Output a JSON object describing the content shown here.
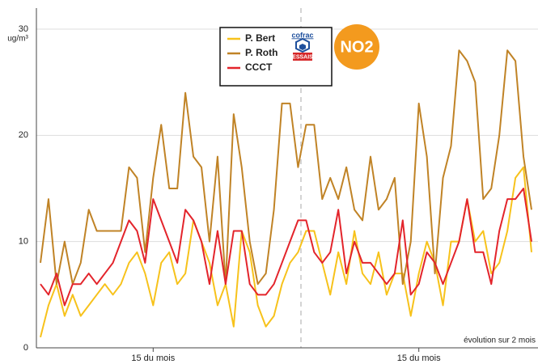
{
  "chart_data": {
    "type": "line",
    "ylabel": "ug/m³",
    "annotation": "évolution sur 2 mois",
    "badge": "NO2",
    "logo": {
      "top": "cofrac",
      "bottom": "ESSAIS"
    },
    "categories": [
      null,
      null,
      null,
      null,
      null,
      null,
      null,
      null,
      null,
      null,
      null,
      null,
      null,
      null,
      "15 du mois",
      null,
      null,
      null,
      null,
      null,
      null,
      null,
      null,
      null,
      null,
      null,
      null,
      null,
      null,
      null,
      null,
      null,
      null,
      null,
      null,
      null,
      null,
      null,
      null,
      null,
      null,
      null,
      null,
      null,
      null,
      null,
      null,
      "15 du mois",
      null,
      null,
      null,
      null,
      null,
      null,
      null,
      null,
      null,
      null,
      null,
      null,
      null,
      null
    ],
    "series": [
      {
        "name": "P. Bert",
        "color": "#f7c21b",
        "values": [
          1,
          4,
          6,
          3,
          5,
          3,
          4,
          5,
          6,
          5,
          6,
          8,
          9,
          7,
          4,
          8,
          9,
          6,
          7,
          12,
          10,
          8,
          4,
          6,
          2,
          11,
          9,
          4,
          2,
          3,
          6,
          8,
          9,
          11,
          11,
          8,
          5,
          9,
          6,
          11,
          7,
          6,
          9,
          5,
          7,
          7,
          3,
          7,
          10,
          8,
          4,
          10,
          10,
          14,
          10,
          11,
          7,
          8,
          11,
          16,
          17,
          9
        ]
      },
      {
        "name": "P. Roth",
        "color": "#c08326",
        "values": [
          8,
          14,
          6,
          10,
          6,
          8,
          13,
          11,
          11,
          11,
          11,
          17,
          16,
          9,
          16,
          21,
          15,
          15,
          24,
          18,
          17,
          10,
          18,
          6,
          22,
          17,
          10,
          6,
          7,
          13,
          23,
          23,
          17,
          21,
          21,
          14,
          16,
          14,
          17,
          13,
          12,
          18,
          13,
          14,
          16,
          6,
          10,
          23,
          18,
          7,
          16,
          19,
          28,
          27,
          25,
          14,
          15,
          20,
          28,
          27,
          18,
          13
        ]
      },
      {
        "name": "CCCT",
        "color": "#e3242b",
        "values": [
          6,
          5,
          7,
          4,
          6,
          6,
          7,
          6,
          7,
          8,
          10,
          12,
          11,
          8,
          14,
          12,
          10,
          8,
          13,
          12,
          10,
          6,
          11,
          6,
          11,
          11,
          6,
          5,
          5,
          6,
          8,
          10,
          12,
          12,
          9,
          8,
          9,
          13,
          7,
          10,
          8,
          8,
          7,
          6,
          7,
          12,
          5,
          6,
          9,
          8,
          6,
          8,
          10,
          14,
          9,
          9,
          6,
          11,
          14,
          14,
          15,
          10
        ]
      }
    ],
    "ylim": [
      0,
      30
    ],
    "yticks": [
      0,
      10,
      20,
      30
    ],
    "grid": true
  }
}
